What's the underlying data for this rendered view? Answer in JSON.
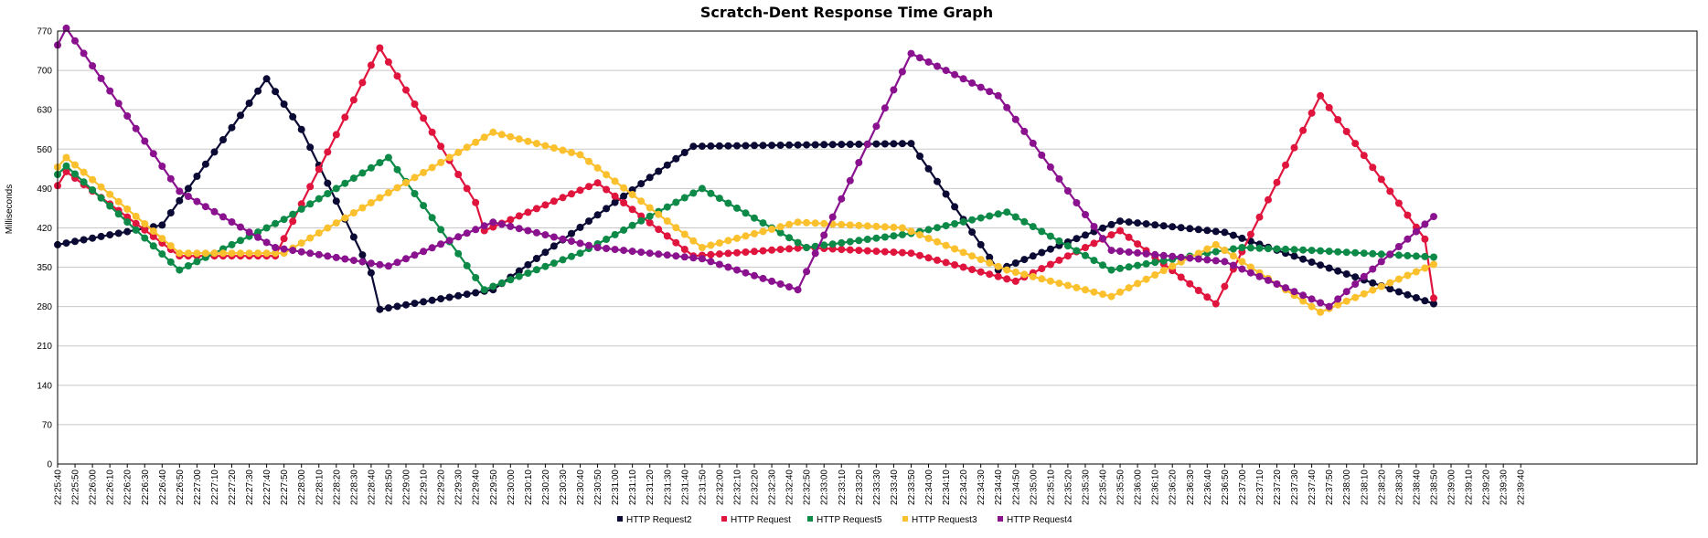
{
  "chart_data": {
    "type": "line",
    "title": "Scratch-Dent Response Time Graph",
    "ylabel": "Milliseconds",
    "xlabel": "",
    "ylim": [
      0,
      770
    ],
    "yticks": [
      "0",
      "70",
      "140",
      "210",
      "280",
      "350",
      "420",
      "490",
      "560",
      "630",
      "700",
      "770"
    ],
    "xticks": [
      "22:25:40",
      "22:25:50",
      "22:26:00",
      "22:26:10",
      "22:26:20",
      "22:26:30",
      "22:26:40",
      "22:26:50",
      "22:27:00",
      "22:27:10",
      "22:27:20",
      "22:27:30",
      "22:27:40",
      "22:27:50",
      "22:28:00",
      "22:28:10",
      "22:28:20",
      "22:28:30",
      "22:28:40",
      "22:28:50",
      "22:29:00",
      "22:29:10",
      "22:29:20",
      "22:29:30",
      "22:29:40",
      "22:29:50",
      "22:30:00",
      "22:30:10",
      "22:30:20",
      "22:30:30",
      "22:30:40",
      "22:30:50",
      "22:31:00",
      "22:31:10",
      "22:31:20",
      "22:31:30",
      "22:31:40",
      "22:31:50",
      "22:32:00",
      "22:32:10",
      "22:32:20",
      "22:32:30",
      "22:32:40",
      "22:32:50",
      "22:33:00",
      "22:33:10",
      "22:33:20",
      "22:33:30",
      "22:33:40",
      "22:33:50",
      "22:34:00",
      "22:34:10",
      "22:34:20",
      "22:34:30",
      "22:34:40",
      "22:34:50",
      "22:35:00",
      "22:35:10",
      "22:35:20",
      "22:35:30",
      "22:35:40",
      "22:35:50",
      "22:36:00",
      "22:36:10",
      "22:36:20",
      "22:36:30",
      "22:36:40",
      "22:36:50",
      "22:37:00",
      "22:37:10",
      "22:37:20",
      "22:37:30",
      "22:37:40",
      "22:37:50",
      "22:38:00",
      "22:38:10",
      "22:38:20",
      "22:38:30",
      "22:38:40",
      "22:38:50",
      "22:39:00",
      "22:39:10",
      "22:39:20",
      "22:39:30",
      "22:39:40"
    ],
    "grid": true,
    "legend_position": "bottom-center",
    "series": [
      {
        "name": "HTTP Request2",
        "color": "#0a0a35",
        "points": [
          [
            "22:25:40",
            390
          ],
          [
            "22:26:40",
            425
          ],
          [
            "22:27:40",
            685
          ],
          [
            "22:28:00",
            595
          ],
          [
            "22:28:40",
            340
          ],
          [
            "22:28:45",
            275
          ],
          [
            "22:29:50",
            310
          ],
          [
            "22:31:45",
            565
          ],
          [
            "22:33:50",
            570
          ],
          [
            "22:34:40",
            345
          ],
          [
            "22:35:50",
            432
          ],
          [
            "22:36:50",
            412
          ],
          [
            "22:38:50",
            285
          ]
        ]
      },
      {
        "name": "HTTP Request",
        "color": "#e0153d",
        "points": [
          [
            "22:25:40",
            495
          ],
          [
            "22:25:45",
            520
          ],
          [
            "22:26:50",
            370
          ],
          [
            "22:27:45",
            370
          ],
          [
            "22:28:45",
            740
          ],
          [
            "22:29:40",
            465
          ],
          [
            "22:29:45",
            415
          ],
          [
            "22:30:50",
            500
          ],
          [
            "22:31:45",
            370
          ],
          [
            "22:32:50",
            385
          ],
          [
            "22:33:50",
            375
          ],
          [
            "22:34:50",
            325
          ],
          [
            "22:35:50",
            415
          ],
          [
            "22:36:45",
            285
          ],
          [
            "22:37:45",
            655
          ],
          [
            "22:38:45",
            400
          ],
          [
            "22:38:50",
            295
          ]
        ]
      },
      {
        "name": "HTTP Request5",
        "color": "#0e8a48",
        "points": [
          [
            "22:25:40",
            515
          ],
          [
            "22:25:45",
            530
          ],
          [
            "22:26:50",
            345
          ],
          [
            "22:27:50",
            435
          ],
          [
            "22:28:50",
            545
          ],
          [
            "22:29:45",
            310
          ],
          [
            "22:30:40",
            375
          ],
          [
            "22:31:50",
            490
          ],
          [
            "22:32:50",
            385
          ],
          [
            "22:33:50",
            410
          ],
          [
            "22:34:45",
            448
          ],
          [
            "22:35:45",
            345
          ],
          [
            "22:36:40",
            375
          ],
          [
            "22:37:00",
            385
          ],
          [
            "22:37:40",
            380
          ],
          [
            "22:38:50",
            368
          ]
        ]
      },
      {
        "name": "HTTP Request3",
        "color": "#fbc02d",
        "points": [
          [
            "22:25:40",
            528
          ],
          [
            "22:25:45",
            545
          ],
          [
            "22:26:50",
            375
          ],
          [
            "22:27:50",
            375
          ],
          [
            "22:29:50",
            590
          ],
          [
            "22:30:40",
            550
          ],
          [
            "22:31:50",
            385
          ],
          [
            "22:32:45",
            430
          ],
          [
            "22:33:45",
            420
          ],
          [
            "22:34:45",
            345
          ],
          [
            "22:35:45",
            298
          ],
          [
            "22:36:45",
            390
          ],
          [
            "22:37:45",
            270
          ],
          [
            "22:38:50",
            355
          ]
        ]
      },
      {
        "name": "HTTP Request4",
        "color": "#8a128f",
        "points": [
          [
            "22:25:40",
            745
          ],
          [
            "22:25:45",
            775
          ],
          [
            "22:26:50",
            485
          ],
          [
            "22:27:45",
            385
          ],
          [
            "22:28:50",
            352
          ],
          [
            "22:29:50",
            430
          ],
          [
            "22:30:50",
            385
          ],
          [
            "22:31:50",
            365
          ],
          [
            "22:32:45",
            310
          ],
          [
            "22:33:50",
            730
          ],
          [
            "22:34:40",
            655
          ],
          [
            "22:35:45",
            380
          ],
          [
            "22:36:50",
            360
          ],
          [
            "22:37:50",
            280
          ],
          [
            "22:38:50",
            440
          ]
        ]
      }
    ]
  }
}
